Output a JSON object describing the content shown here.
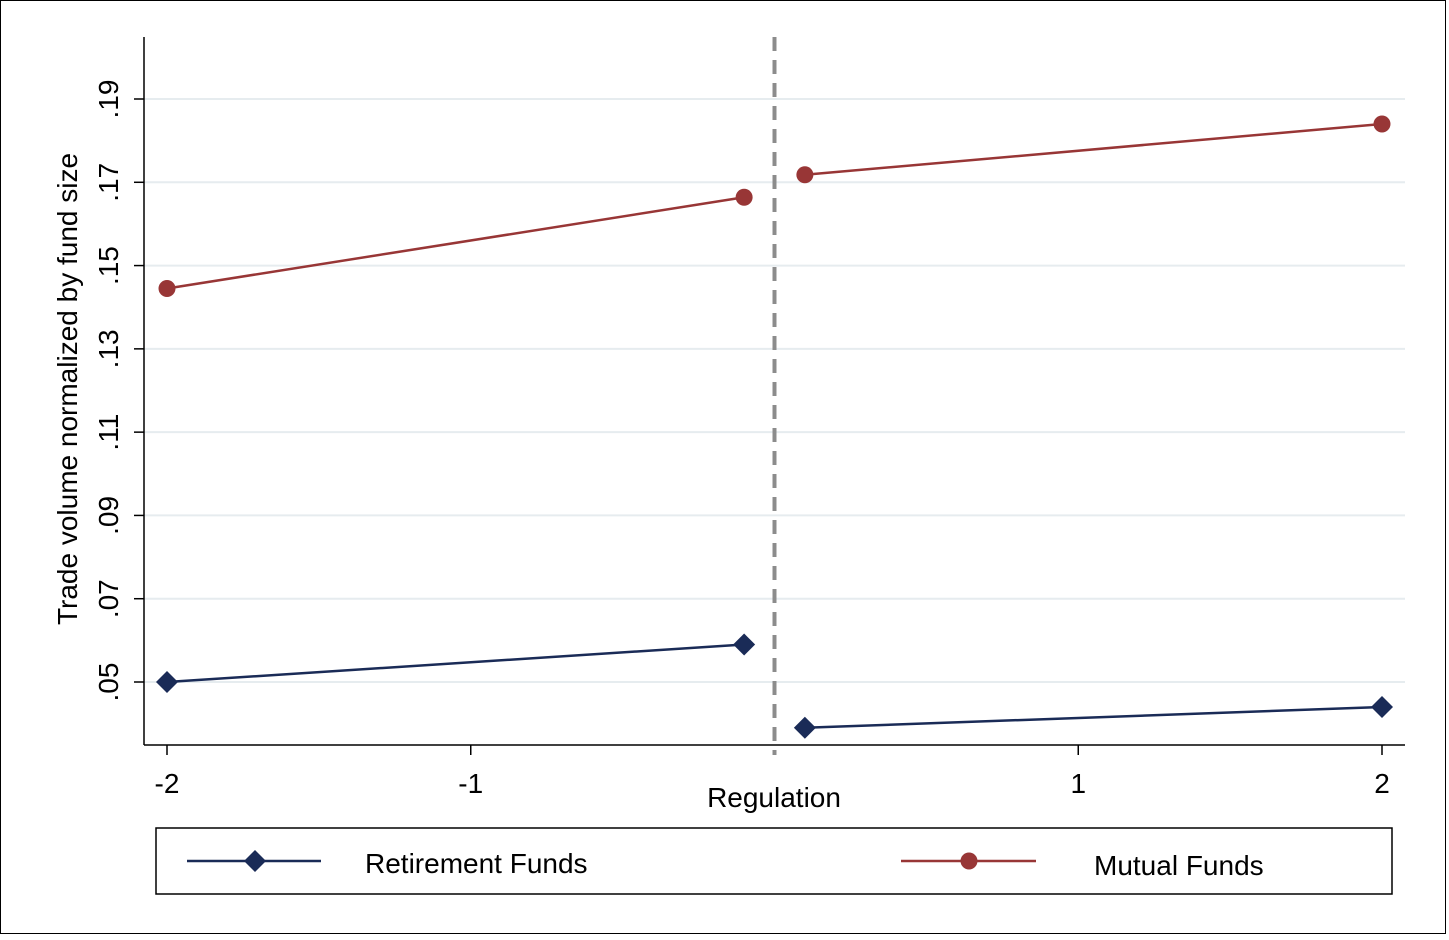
{
  "chart_data": {
    "type": "line",
    "xlabel": "Regulation",
    "ylabel": "Trade volume normalized by fund size",
    "xlim": [
      -2.07,
      2.07
    ],
    "ylim": [
      0.035,
      0.205
    ],
    "x_ticks": [
      -2,
      -1,
      1,
      2
    ],
    "x_tick_labels": [
      "-2",
      "-1",
      "1",
      "2"
    ],
    "y_ticks": [
      0.05,
      0.07,
      0.09,
      0.11,
      0.13,
      0.15,
      0.17,
      0.19
    ],
    "y_tick_labels": [
      ".05",
      ".07",
      ".09",
      ".11",
      ".13",
      ".15",
      ".17",
      ".19"
    ],
    "grid": "horizontal",
    "reference_line": {
      "x": 0,
      "style": "dashed",
      "color": "#8c8c8c"
    },
    "legend_position": "bottom",
    "series": [
      {
        "name": "Retirement Funds",
        "color": "#1a2b57",
        "marker": "diamond",
        "segments": [
          [
            [
              -2,
              0.05
            ],
            [
              -0.1,
              0.059
            ]
          ],
          [
            [
              0.1,
              0.039
            ],
            [
              2,
              0.044
            ]
          ]
        ]
      },
      {
        "name": "Mutual Funds",
        "color": "#983636",
        "marker": "circle",
        "segments": [
          [
            [
              -2,
              0.1445
            ],
            [
              -0.1,
              0.1664
            ]
          ],
          [
            [
              0.1,
              0.1718
            ],
            [
              2,
              0.184
            ]
          ]
        ]
      }
    ]
  }
}
